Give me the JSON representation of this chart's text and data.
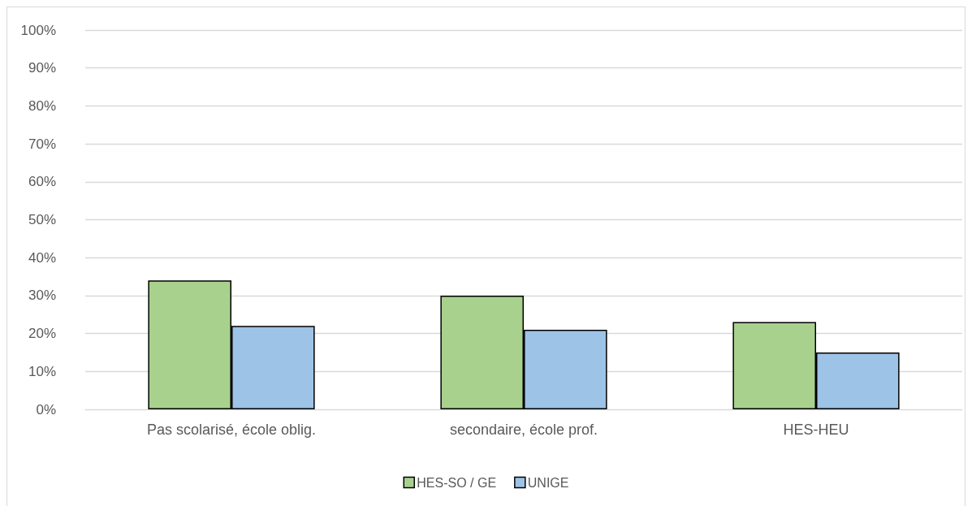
{
  "chart_data": {
    "type": "bar",
    "categories": [
      "Pas scolarisé, école oblig.",
      "secondaire, école prof.",
      "HES-HEU"
    ],
    "series": [
      {
        "name": "HES-SO / GE",
        "color": "#a9d18e",
        "values": [
          34,
          30,
          23
        ]
      },
      {
        "name": "UNIGE",
        "color": "#9dc3e6",
        "values": [
          22,
          21,
          15
        ]
      }
    ],
    "ylim": [
      0,
      100
    ],
    "yticks": [
      {
        "value": 0,
        "label": "0%"
      },
      {
        "value": 10,
        "label": "10%"
      },
      {
        "value": 20,
        "label": "20%"
      },
      {
        "value": 30,
        "label": "30%"
      },
      {
        "value": 40,
        "label": "40%"
      },
      {
        "value": 50,
        "label": "50%"
      },
      {
        "value": 60,
        "label": "60%"
      },
      {
        "value": 70,
        "label": "70%"
      },
      {
        "value": 80,
        "label": "80%"
      },
      {
        "value": 90,
        "label": "90%"
      },
      {
        "value": 100,
        "label": "100%"
      }
    ],
    "grid": "y",
    "legend": "bottom"
  }
}
